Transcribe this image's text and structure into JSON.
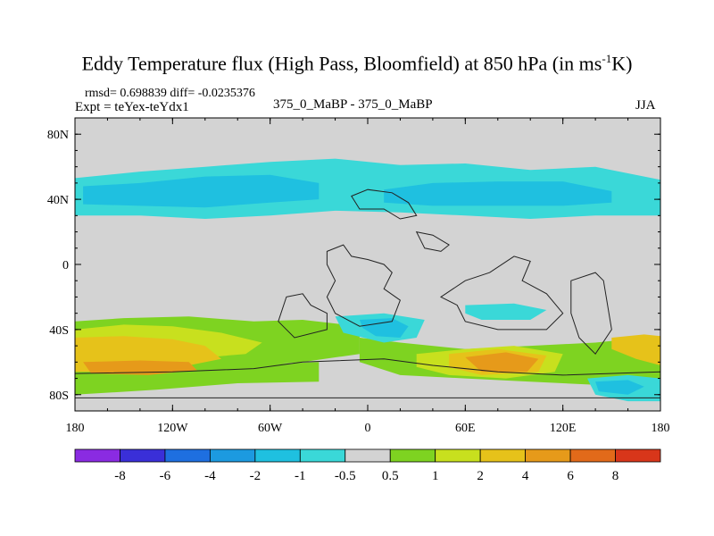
{
  "title": {
    "main": "Eddy Temperature flux (High Pass, Bloomfield) at 850 hPa (in ms",
    "sup": "-1",
    "tail": "K)"
  },
  "stats": {
    "rmsd": "rmsd= 0.698839 diff= -0.0235376",
    "expt": "Expt = teYex-teYdx1"
  },
  "center_label": "375_0_MaBP - 375_0_MaBP",
  "season": "JJA",
  "colors": {
    "land_outline": "#222222",
    "background": "#d3d3d3"
  },
  "chart_data": {
    "type": "filled-contour-map",
    "variable": "Eddy Temperature flux (High Pass, Bloomfield)",
    "level": "850 hPa",
    "units": "ms-1K",
    "lon_range": [
      -180,
      180
    ],
    "lat_range": [
      -90,
      90
    ],
    "x_ticks": [
      {
        "lon": -180,
        "label": "180"
      },
      {
        "lon": -120,
        "label": "120W"
      },
      {
        "lon": -60,
        "label": "60W"
      },
      {
        "lon": 0,
        "label": "0"
      },
      {
        "lon": 60,
        "label": "60E"
      },
      {
        "lon": 120,
        "label": "120E"
      },
      {
        "lon": 180,
        "label": "180"
      }
    ],
    "y_ticks": [
      {
        "lat": 80,
        "label": "80N"
      },
      {
        "lat": 40,
        "label": "40N"
      },
      {
        "lat": 0,
        "label": "0"
      },
      {
        "lat": -40,
        "label": "40S"
      },
      {
        "lat": -80,
        "label": "80S"
      }
    ],
    "colorbar": {
      "bins": [
        {
          "color": "#8a2be2"
        },
        {
          "color": "#3a2fd8"
        },
        {
          "color": "#1e6fe0"
        },
        {
          "color": "#1c9ae0"
        },
        {
          "color": "#1fc0e0"
        },
        {
          "color": "#3ad8d8"
        },
        {
          "color": "#d3d3d3"
        },
        {
          "color": "#7ed321"
        },
        {
          "color": "#c8e01e"
        },
        {
          "color": "#e6c21a"
        },
        {
          "color": "#e69a1a"
        },
        {
          "color": "#e26a1a"
        },
        {
          "color": "#d8361a"
        }
      ],
      "labels": [
        "-8",
        "-6",
        "-4",
        "-2",
        "-1",
        "-0.5",
        "0.5",
        "1",
        "2",
        "4",
        "6",
        "8"
      ]
    },
    "regions": [
      {
        "name": "nh-midlat-band",
        "level": "-0.5 to -1",
        "color": "#3ad8d8",
        "points": [
          [
            -180,
            30
          ],
          [
            -140,
            30
          ],
          [
            -100,
            28
          ],
          [
            -60,
            30
          ],
          [
            -20,
            33
          ],
          [
            20,
            32
          ],
          [
            60,
            30
          ],
          [
            100,
            28
          ],
          [
            140,
            30
          ],
          [
            180,
            30
          ],
          [
            180,
            52
          ],
          [
            140,
            60
          ],
          [
            100,
            58
          ],
          [
            60,
            62
          ],
          [
            20,
            61
          ],
          [
            -20,
            65
          ],
          [
            -60,
            63
          ],
          [
            -100,
            60
          ],
          [
            -140,
            57
          ],
          [
            -180,
            53
          ]
        ]
      },
      {
        "name": "nh-core-1",
        "level": "-1 to -2",
        "color": "#1fc0e0",
        "points": [
          [
            -175,
            37
          ],
          [
            -140,
            36
          ],
          [
            -100,
            35
          ],
          [
            -60,
            38
          ],
          [
            -30,
            40
          ],
          [
            -30,
            50
          ],
          [
            -60,
            55
          ],
          [
            -100,
            54
          ],
          [
            -140,
            50
          ],
          [
            -175,
            48
          ]
        ]
      },
      {
        "name": "nh-core-2",
        "level": "-1 to -2",
        "color": "#1fc0e0",
        "points": [
          [
            10,
            38
          ],
          [
            40,
            36
          ],
          [
            80,
            36
          ],
          [
            120,
            36
          ],
          [
            150,
            38
          ],
          [
            150,
            45
          ],
          [
            120,
            51
          ],
          [
            80,
            51
          ],
          [
            40,
            50
          ],
          [
            10,
            46
          ]
        ]
      },
      {
        "name": "sh-green-west",
        "level": "0.5 to 1",
        "color": "#7ed321",
        "points": [
          [
            -180,
            -35
          ],
          [
            -150,
            -33
          ],
          [
            -110,
            -32
          ],
          [
            -70,
            -35
          ],
          [
            -40,
            -34
          ],
          [
            -5,
            -38
          ],
          [
            -5,
            -55
          ],
          [
            -40,
            -60
          ],
          [
            -80,
            -63
          ],
          [
            -130,
            -67
          ],
          [
            -180,
            -70
          ]
        ]
      },
      {
        "name": "sh-green-east",
        "level": "0.5 to 1",
        "color": "#7ed321",
        "points": [
          [
            -5,
            -45
          ],
          [
            20,
            -48
          ],
          [
            60,
            -52
          ],
          [
            100,
            -50
          ],
          [
            140,
            -48
          ],
          [
            180,
            -44
          ],
          [
            180,
            -78
          ],
          [
            140,
            -74
          ],
          [
            100,
            -72
          ],
          [
            60,
            -70
          ],
          [
            20,
            -68
          ],
          [
            -5,
            -60
          ]
        ]
      },
      {
        "name": "sh-green-south",
        "level": "0.5 to 1",
        "color": "#7ed321",
        "points": [
          [
            -180,
            -60
          ],
          [
            -130,
            -62
          ],
          [
            -80,
            -62
          ],
          [
            -30,
            -60
          ],
          [
            -30,
            -72
          ],
          [
            -80,
            -73
          ],
          [
            -130,
            -77
          ],
          [
            -180,
            -80
          ]
        ]
      },
      {
        "name": "sh-yellow-west",
        "level": "1 to 2",
        "color": "#c8e01e",
        "points": [
          [
            -180,
            -40
          ],
          [
            -150,
            -37
          ],
          [
            -120,
            -38
          ],
          [
            -90,
            -42
          ],
          [
            -65,
            -48
          ],
          [
            -75,
            -55
          ],
          [
            -110,
            -58
          ],
          [
            -150,
            -60
          ],
          [
            -180,
            -62
          ]
        ]
      },
      {
        "name": "sh-yellow-east",
        "level": "1 to 2",
        "color": "#c8e01e",
        "points": [
          [
            30,
            -55
          ],
          [
            60,
            -52
          ],
          [
            90,
            -50
          ],
          [
            120,
            -55
          ],
          [
            115,
            -66
          ],
          [
            85,
            -70
          ],
          [
            50,
            -68
          ],
          [
            30,
            -63
          ]
        ]
      },
      {
        "name": "sh-orange-west",
        "level": "2 to 4",
        "color": "#e6c21a",
        "points": [
          [
            -180,
            -45
          ],
          [
            -150,
            -44
          ],
          [
            -120,
            -46
          ],
          [
            -100,
            -50
          ],
          [
            -90,
            -58
          ],
          [
            -120,
            -64
          ],
          [
            -160,
            -66
          ],
          [
            -180,
            -66
          ]
        ]
      },
      {
        "name": "sh-orange-east",
        "level": "2 to 4",
        "color": "#e6c21a",
        "points": [
          [
            50,
            -55
          ],
          [
            80,
            -52
          ],
          [
            110,
            -56
          ],
          [
            105,
            -66
          ],
          [
            70,
            -68
          ],
          [
            50,
            -63
          ]
        ]
      },
      {
        "name": "sh-orange-east-far",
        "level": "2 to 4",
        "color": "#e6c21a",
        "points": [
          [
            150,
            -45
          ],
          [
            170,
            -43
          ],
          [
            180,
            -44
          ],
          [
            180,
            -62
          ],
          [
            165,
            -58
          ],
          [
            150,
            -52
          ]
        ]
      },
      {
        "name": "sh-dark-orange-west",
        "level": "4 to 6",
        "color": "#e69a1a",
        "points": [
          [
            -175,
            -60
          ],
          [
            -140,
            -59
          ],
          [
            -110,
            -60
          ],
          [
            -105,
            -65
          ],
          [
            -135,
            -68
          ],
          [
            -170,
            -67
          ]
        ]
      },
      {
        "name": "sh-dark-orange-east",
        "level": "4 to 6",
        "color": "#e69a1a",
        "points": [
          [
            60,
            -57
          ],
          [
            85,
            -54
          ],
          [
            105,
            -58
          ],
          [
            98,
            -66
          ],
          [
            70,
            -66
          ]
        ]
      },
      {
        "name": "sh-cyan-atlantic",
        "level": "-0.5 to -1",
        "color": "#3ad8d8",
        "points": [
          [
            -20,
            -32
          ],
          [
            10,
            -30
          ],
          [
            35,
            -34
          ],
          [
            30,
            -45
          ],
          [
            10,
            -48
          ],
          [
            -15,
            -42
          ]
        ]
      },
      {
        "name": "sh-blue-atlantic",
        "level": "-1 to -2",
        "color": "#1fc0e0",
        "points": [
          [
            -5,
            -34
          ],
          [
            15,
            -33
          ],
          [
            25,
            -38
          ],
          [
            20,
            -45
          ],
          [
            5,
            -44
          ],
          [
            -3,
            -39
          ]
        ]
      },
      {
        "name": "sh-cyan-indian",
        "level": "-0.5 to -1",
        "color": "#3ad8d8",
        "points": [
          [
            60,
            -25
          ],
          [
            90,
            -24
          ],
          [
            110,
            -28
          ],
          [
            100,
            -34
          ],
          [
            70,
            -34
          ],
          [
            60,
            -30
          ]
        ]
      },
      {
        "name": "sh-cyan-east",
        "level": "-0.5 to -1",
        "color": "#3ad8d8",
        "points": [
          [
            135,
            -70
          ],
          [
            160,
            -68
          ],
          [
            180,
            -70
          ],
          [
            180,
            -84
          ],
          [
            160,
            -84
          ],
          [
            140,
            -80
          ]
        ]
      },
      {
        "name": "sh-blue-east",
        "level": "-1 to -2",
        "color": "#1fc0e0",
        "points": [
          [
            140,
            -72
          ],
          [
            160,
            -71
          ],
          [
            170,
            -75
          ],
          [
            160,
            -80
          ],
          [
            142,
            -78
          ]
        ]
      }
    ],
    "land_outlines": [
      {
        "name": "continent-north-island",
        "points": [
          [
            -10,
            42
          ],
          [
            0,
            46
          ],
          [
            15,
            44
          ],
          [
            25,
            38
          ],
          [
            30,
            30
          ],
          [
            20,
            28
          ],
          [
            10,
            34
          ],
          [
            -5,
            34
          ]
        ]
      },
      {
        "name": "continent-center",
        "points": [
          [
            -25,
            8
          ],
          [
            -15,
            12
          ],
          [
            -10,
            5
          ],
          [
            0,
            3
          ],
          [
            10,
            0
          ],
          [
            15,
            -5
          ],
          [
            10,
            -15
          ],
          [
            20,
            -22
          ],
          [
            15,
            -35
          ],
          [
            -5,
            -38
          ],
          [
            -20,
            -30
          ],
          [
            -25,
            -20
          ],
          [
            -20,
            -10
          ],
          [
            -25,
            0
          ]
        ]
      },
      {
        "name": "continent-west-arm",
        "points": [
          [
            -50,
            -20
          ],
          [
            -40,
            -18
          ],
          [
            -35,
            -25
          ],
          [
            -25,
            -30
          ],
          [
            -25,
            -40
          ],
          [
            -45,
            -45
          ],
          [
            -55,
            -35
          ]
        ]
      },
      {
        "name": "continent-south-strip",
        "points": [
          [
            -180,
            -67
          ],
          [
            -120,
            -66
          ],
          [
            -70,
            -64
          ],
          [
            -40,
            -60
          ],
          [
            10,
            -58
          ],
          [
            40,
            -62
          ],
          [
            80,
            -66
          ],
          [
            120,
            -68
          ],
          [
            180,
            -66
          ],
          [
            180,
            -82
          ],
          [
            -180,
            -82
          ]
        ]
      },
      {
        "name": "continent-east-central",
        "points": [
          [
            45,
            -20
          ],
          [
            60,
            -10
          ],
          [
            75,
            -5
          ],
          [
            90,
            5
          ],
          [
            100,
            2
          ],
          [
            95,
            -10
          ],
          [
            110,
            -18
          ],
          [
            120,
            -30
          ],
          [
            110,
            -40
          ],
          [
            80,
            -40
          ],
          [
            60,
            -35
          ],
          [
            55,
            -25
          ]
        ]
      },
      {
        "name": "continent-east-block",
        "points": [
          [
            125,
            -10
          ],
          [
            140,
            -5
          ],
          [
            145,
            -10
          ],
          [
            150,
            -40
          ],
          [
            140,
            -55
          ],
          [
            130,
            -45
          ],
          [
            125,
            -30
          ]
        ]
      },
      {
        "name": "island-northeast",
        "points": [
          [
            30,
            20
          ],
          [
            40,
            18
          ],
          [
            50,
            12
          ],
          [
            45,
            8
          ],
          [
            35,
            10
          ]
        ]
      }
    ]
  }
}
